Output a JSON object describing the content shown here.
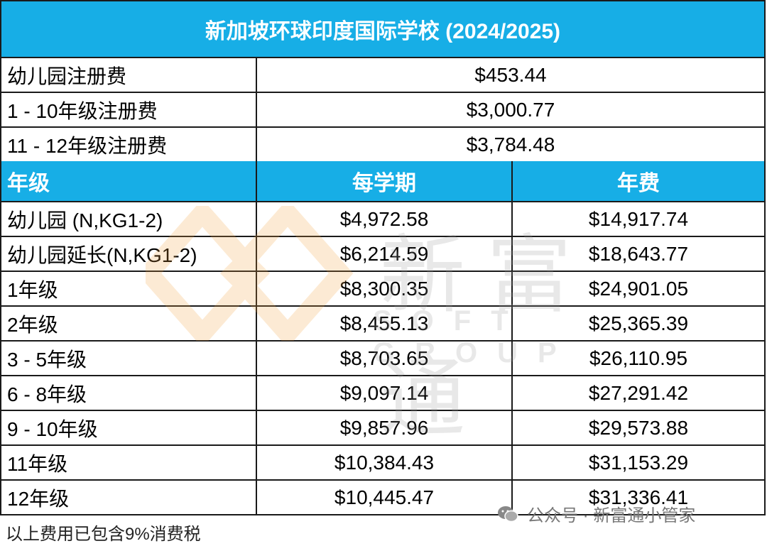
{
  "title": "新加坡环球印度国际学校 (2024/2025)",
  "registration": [
    {
      "label": "幼儿园注册费",
      "amount": "$453.44"
    },
    {
      "label": "1 - 10年级注册费",
      "amount": "$3,000.77"
    },
    {
      "label": "11 - 12年级注册费",
      "amount": "$3,784.48"
    }
  ],
  "headers": {
    "grade": "年级",
    "per_term": "每学期",
    "annual": "年费"
  },
  "fees": [
    {
      "grade": "幼儿园 (N,KG1-2)",
      "per_term": "$4,972.58",
      "annual": "$14,917.74"
    },
    {
      "grade": "幼儿园延长(N,KG1-2)",
      "per_term": "$6,214.59",
      "annual": "$18,643.77"
    },
    {
      "grade": "1年级",
      "per_term": "$8,300.35",
      "annual": "$24,901.05"
    },
    {
      "grade": "2年级",
      "per_term": "$8,455.13",
      "annual": "$25,365.39"
    },
    {
      "grade": "3 - 5年级",
      "per_term": "$8,703.65",
      "annual": "$26,110.95"
    },
    {
      "grade": "6 - 8年级",
      "per_term": "$9,097.14",
      "annual": "$27,291.42"
    },
    {
      "grade": "9 - 10年级",
      "per_term": "$9,857.96",
      "annual": "$29,573.88"
    },
    {
      "grade": "11年级",
      "per_term": "$10,384.43",
      "annual": "$31,153.29"
    },
    {
      "grade": "12年级",
      "per_term": "$10,445.47",
      "annual": "$31,336.41"
    }
  ],
  "note": "以上费用已包含9%消费税",
  "watermark": {
    "text": "新富通",
    "sub": "SOFT GROUP"
  },
  "wechat_label": "公众号 · 新富通小管家",
  "colors": {
    "header_bg": "#17aee6",
    "header_text": "#ffffff",
    "border": "#1a1a1a",
    "watermark_orange": "#f5a340"
  },
  "icons": [
    "logo-diamond-icon",
    "wechat-icon"
  ]
}
